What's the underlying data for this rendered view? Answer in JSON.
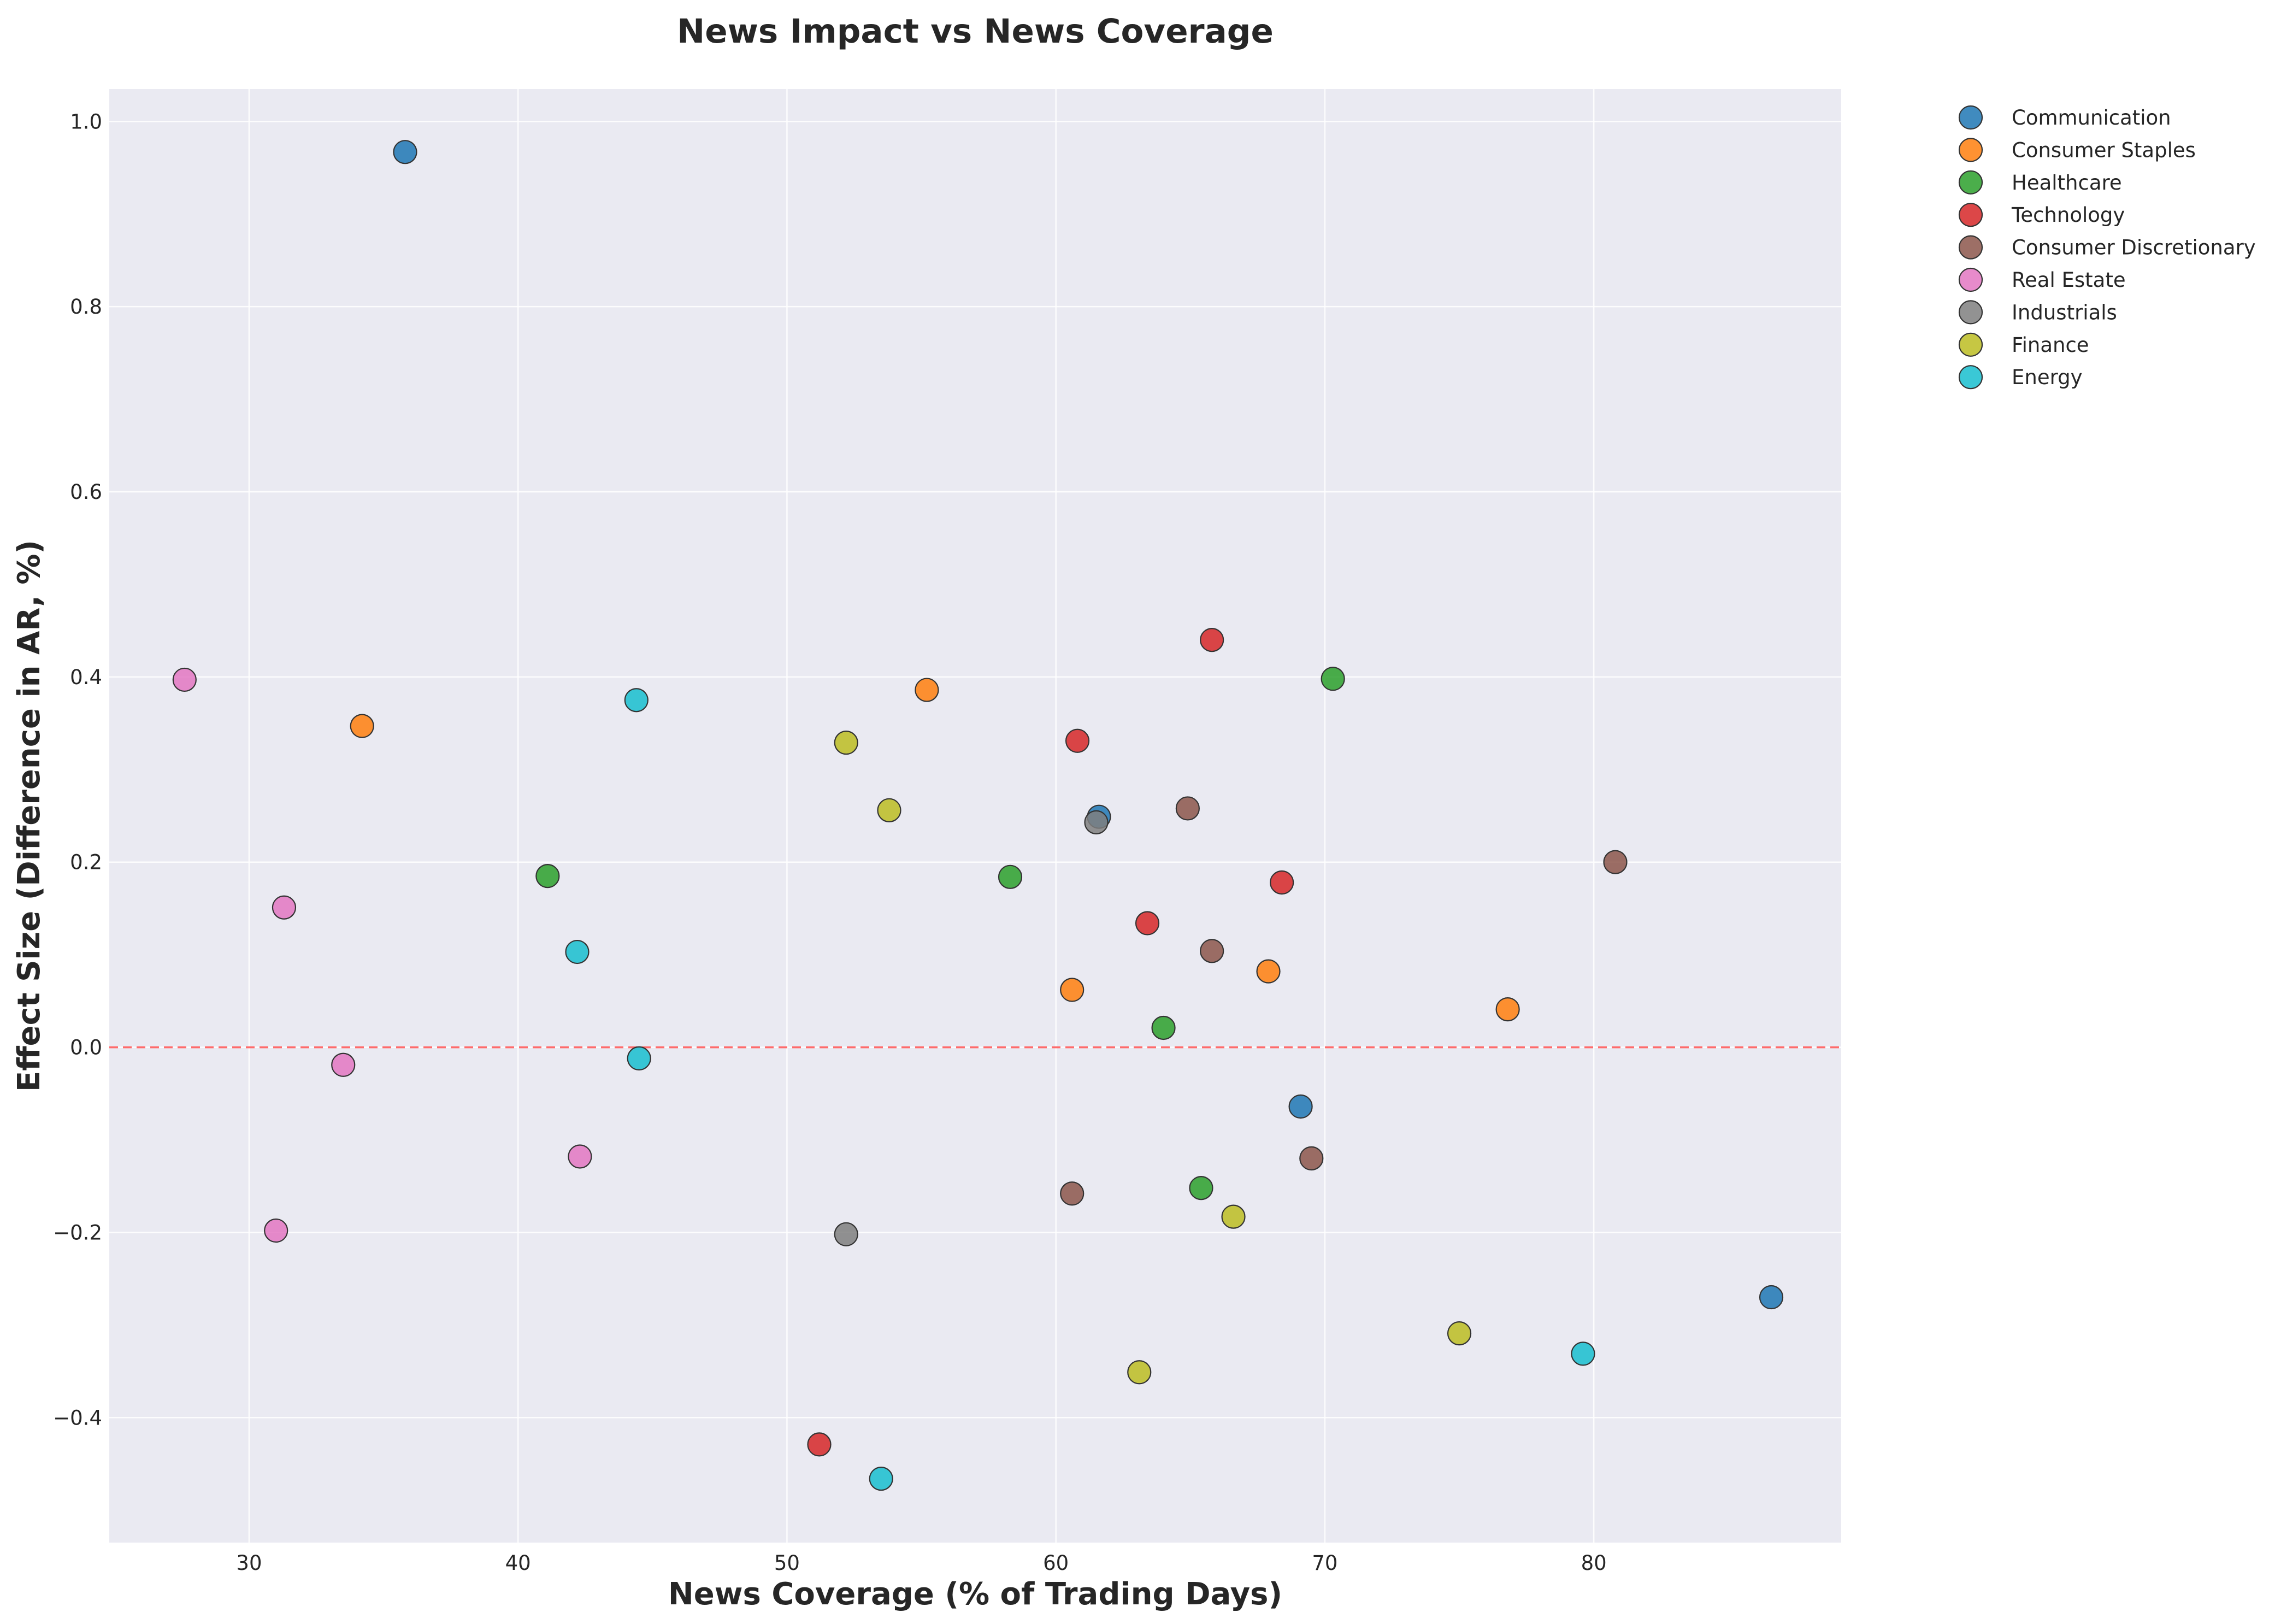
{
  "chart_data": {
    "type": "scatter",
    "title": "News Impact vs News Coverage",
    "xlabel": "News Coverage (% of Trading Days)",
    "ylabel": "Effect Size (Difference in AR, %)",
    "xlim": [
      24.8,
      89.2
    ],
    "ylim": [
      -0.535,
      1.035
    ],
    "xticks": [
      30,
      40,
      50,
      60,
      70,
      80
    ],
    "yticks": [
      -0.4,
      -0.2,
      0.0,
      0.2,
      0.4,
      0.6,
      0.8,
      1.0
    ],
    "xtick_labels": [
      "30",
      "40",
      "50",
      "60",
      "70",
      "80"
    ],
    "ytick_labels": [
      "−0.4",
      "−0.2",
      "0.0",
      "0.2",
      "0.4",
      "0.6",
      "0.8",
      "1.0"
    ],
    "grid": true,
    "reference_line": {
      "y": 0,
      "style": "dashed",
      "color": "#ff6b6b"
    },
    "legend_position": "outside-top-right",
    "series": [
      {
        "name": "Communication",
        "color": "#1f77b4",
        "points": [
          [
            35.8,
            0.967
          ],
          [
            61.6,
            0.249
          ],
          [
            69.1,
            -0.064
          ],
          [
            86.6,
            -0.27
          ]
        ]
      },
      {
        "name": "Consumer Staples",
        "color": "#ff7f0e",
        "points": [
          [
            34.2,
            0.347
          ],
          [
            55.2,
            0.386
          ],
          [
            60.6,
            0.062
          ],
          [
            67.9,
            0.082
          ],
          [
            76.8,
            0.041
          ]
        ]
      },
      {
        "name": "Healthcare",
        "color": "#2ca02c",
        "points": [
          [
            41.1,
            0.185
          ],
          [
            58.3,
            0.184
          ],
          [
            64.0,
            0.021
          ],
          [
            65.4,
            -0.152
          ],
          [
            70.3,
            0.398
          ]
        ]
      },
      {
        "name": "Technology",
        "color": "#d62728",
        "points": [
          [
            51.2,
            -0.429
          ],
          [
            60.8,
            0.331
          ],
          [
            63.4,
            0.134
          ],
          [
            65.8,
            0.44
          ],
          [
            68.4,
            0.178
          ]
        ]
      },
      {
        "name": "Consumer Discretionary",
        "color": "#8c564b",
        "points": [
          [
            60.6,
            -0.158
          ],
          [
            64.9,
            0.258
          ],
          [
            65.8,
            0.104
          ],
          [
            69.5,
            -0.12
          ],
          [
            80.8,
            0.2
          ]
        ]
      },
      {
        "name": "Real Estate",
        "color": "#e377c2",
        "points": [
          [
            27.6,
            0.397
          ],
          [
            31.0,
            -0.198
          ],
          [
            31.3,
            0.151
          ],
          [
            33.5,
            -0.019
          ],
          [
            42.3,
            -0.118
          ]
        ]
      },
      {
        "name": "Industrials",
        "color": "#7f7f7f",
        "points": [
          [
            52.2,
            -0.202
          ],
          [
            61.5,
            0.243
          ]
        ]
      },
      {
        "name": "Finance",
        "color": "#bcbd22",
        "points": [
          [
            52.2,
            0.329
          ],
          [
            53.8,
            0.256
          ],
          [
            63.1,
            -0.351
          ],
          [
            66.6,
            -0.183
          ],
          [
            75.0,
            -0.309
          ]
        ]
      },
      {
        "name": "Energy",
        "color": "#17becf",
        "points": [
          [
            42.2,
            0.103
          ],
          [
            44.4,
            0.375
          ],
          [
            44.5,
            -0.012
          ],
          [
            53.5,
            -0.466
          ],
          [
            79.6,
            -0.331
          ]
        ]
      }
    ]
  }
}
